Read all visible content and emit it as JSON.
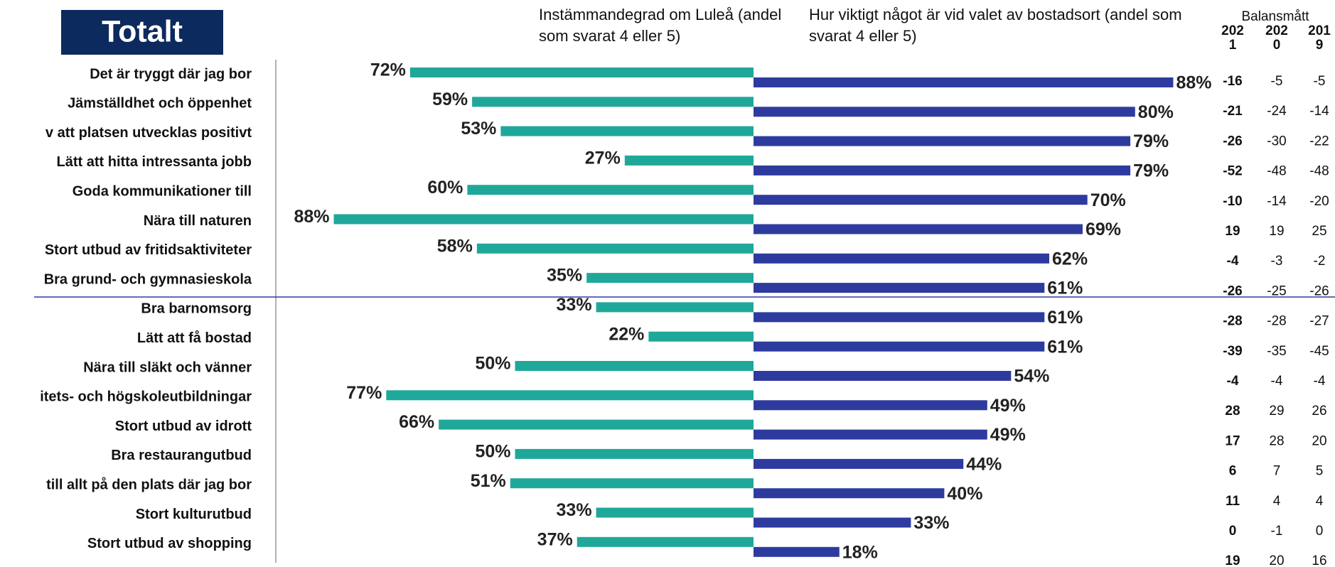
{
  "chart_data": {
    "type": "butterfly_bar",
    "title": "Totalt",
    "categories": [
      "Det är tryggt där jag bor",
      "Jämställdhet och öppenhet",
      "v att platsen utvecklas positivt",
      "Lätt att hitta intressanta jobb",
      "Goda kommunikationer till",
      "Nära till naturen",
      "Stort utbud av fritidsaktiviteter",
      "Bra grund- och gymnasieskola",
      "Bra barnomsorg",
      "Lätt att få bostad",
      "Nära till släkt och vänner",
      "itets- och högskoleutbildningar",
      "Stort utbud av idrott",
      "Bra restaurangutbud",
      "till allt på den plats där jag bor",
      "Stort kulturutbud",
      "Stort utbud av shopping"
    ],
    "series": [
      {
        "name": "Instämmandegrad om Luleå (andel som svarat 4 eller 5)",
        "color": "#1fa89a",
        "values": [
          72,
          59,
          53,
          27,
          60,
          88,
          58,
          35,
          33,
          22,
          50,
          77,
          66,
          50,
          51,
          33,
          37
        ],
        "value_labels": [
          "72%",
          "59%",
          "53%",
          "27%",
          "60%",
          "88%",
          "58%",
          "35%",
          "33%",
          "22%",
          "50%",
          "77%",
          "66%",
          "50%",
          "51%",
          "33%",
          "37%"
        ]
      },
      {
        "name": "Hur viktigt något är vid valet av bostadsort (andel som svarat 4 eller 5)",
        "color": "#2e3b9e",
        "values": [
          88,
          80,
          79,
          79,
          70,
          69,
          62,
          61,
          61,
          61,
          54,
          49,
          49,
          44,
          40,
          33,
          18
        ],
        "value_labels": [
          "88%",
          "80%",
          "79%",
          "79%",
          "70%",
          "69%",
          "62%",
          "61%",
          "61%",
          "61%",
          "54%",
          "49%",
          "49%",
          "44%",
          "40%",
          "33%",
          "18%"
        ]
      }
    ],
    "balance": {
      "title": "Balansmått",
      "columns": [
        "2021",
        "2020",
        "2019"
      ],
      "rows": [
        [
          -16,
          -5,
          -5
        ],
        [
          -21,
          -24,
          -14
        ],
        [
          -26,
          -30,
          -22
        ],
        [
          -52,
          -48,
          -48
        ],
        [
          -10,
          -14,
          -20
        ],
        [
          19,
          19,
          25
        ],
        [
          -4,
          -3,
          -2
        ],
        [
          -26,
          -25,
          -26
        ],
        [
          -28,
          -28,
          -27
        ],
        [
          -39,
          -35,
          -45
        ],
        [
          -4,
          -4,
          -4
        ],
        [
          28,
          29,
          26
        ],
        [
          17,
          28,
          20
        ],
        [
          6,
          7,
          5
        ],
        [
          11,
          4,
          4
        ],
        [
          0,
          -1,
          0
        ],
        [
          19,
          20,
          16
        ]
      ]
    }
  }
}
